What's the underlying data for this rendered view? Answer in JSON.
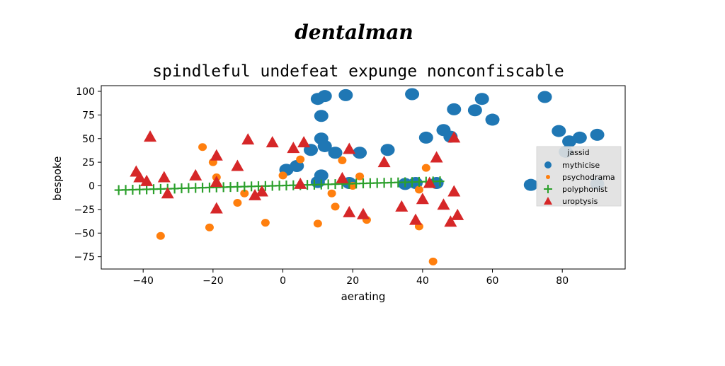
{
  "suptitle": "dentalman",
  "chart_data": {
    "type": "scatter",
    "title": "spindleful undefeat expunge nonconfiscable",
    "xlabel": "aerating",
    "ylabel": "bespoke",
    "xlim": [
      -52,
      98
    ],
    "ylim": [
      -88,
      106
    ],
    "xticks": [
      -40,
      -20,
      0,
      20,
      40,
      60,
      80
    ],
    "xtick_labels": [
      "−40",
      "−20",
      "0",
      "20",
      "40",
      "60",
      "80"
    ],
    "yticks": [
      -75,
      -50,
      -25,
      0,
      25,
      50,
      75,
      100
    ],
    "ytick_labels": [
      "−75",
      "−50",
      "−25",
      "0",
      "25",
      "50",
      "75",
      "100"
    ],
    "grid": false,
    "legend": {
      "title": "jassid",
      "placement": "center-right"
    },
    "series": [
      {
        "name": "mythicise",
        "marker": "circle-large",
        "color": "#1f77b4",
        "points": [
          [
            10,
            92
          ],
          [
            12,
            95
          ],
          [
            18,
            96
          ],
          [
            37,
            97
          ],
          [
            57,
            92
          ],
          [
            75,
            94
          ],
          [
            11,
            74
          ],
          [
            49,
            81
          ],
          [
            55,
            80
          ],
          [
            60,
            70
          ],
          [
            79,
            58
          ],
          [
            82,
            47
          ],
          [
            85,
            51
          ],
          [
            90,
            54
          ],
          [
            46,
            59
          ],
          [
            41,
            51
          ],
          [
            48,
            52
          ],
          [
            11,
            50
          ],
          [
            12,
            42
          ],
          [
            15,
            35
          ],
          [
            22,
            35
          ],
          [
            30,
            38
          ],
          [
            8,
            38
          ],
          [
            4,
            21
          ],
          [
            1,
            17
          ],
          [
            11,
            11
          ],
          [
            19,
            3
          ],
          [
            10,
            4
          ],
          [
            35,
            2
          ],
          [
            38,
            3
          ],
          [
            44,
            3
          ],
          [
            71,
            1
          ],
          [
            81,
            36
          ],
          [
            90,
            2
          ]
        ]
      },
      {
        "name": "psychodrama",
        "marker": "circle-small",
        "color": "#ff7f0e",
        "points": [
          [
            -23,
            41
          ],
          [
            -20,
            25
          ],
          [
            -19,
            9
          ],
          [
            -35,
            -53
          ],
          [
            -21,
            -44
          ],
          [
            -13,
            -18
          ],
          [
            -11,
            -8
          ],
          [
            -5,
            -39
          ],
          [
            0,
            11
          ],
          [
            5,
            28
          ],
          [
            10,
            -40
          ],
          [
            14,
            -8
          ],
          [
            15,
            -22
          ],
          [
            17,
            27
          ],
          [
            20,
            0
          ],
          [
            22,
            10
          ],
          [
            24,
            -36
          ],
          [
            39,
            -4
          ],
          [
            39,
            -43
          ],
          [
            41,
            19
          ],
          [
            43,
            -80
          ]
        ]
      },
      {
        "name": "polyphonist",
        "marker": "plus",
        "color": "#2ca02c",
        "points": [
          [
            -47,
            -4.5
          ],
          [
            -45,
            -4.3
          ],
          [
            -43,
            -4.1
          ],
          [
            -41,
            -3.9
          ],
          [
            -39,
            -3.7
          ],
          [
            -37,
            -3.5
          ],
          [
            -35,
            -3.3
          ],
          [
            -33,
            -3.1
          ],
          [
            -31,
            -2.9
          ],
          [
            -29,
            -2.6
          ],
          [
            -27,
            -2.4
          ],
          [
            -25,
            -2.2
          ],
          [
            -23,
            -2.0
          ],
          [
            -21,
            -1.8
          ],
          [
            -19,
            -1.6
          ],
          [
            -17,
            -1.4
          ],
          [
            -15,
            -1.2
          ],
          [
            -13,
            -1.0
          ],
          [
            -11,
            -0.8
          ],
          [
            -9,
            -0.6
          ],
          [
            -7,
            -0.4
          ],
          [
            -5,
            -0.2
          ],
          [
            -3,
            0.0
          ],
          [
            -1,
            0.2
          ],
          [
            1,
            0.4
          ],
          [
            3,
            0.6
          ],
          [
            5,
            0.8
          ],
          [
            7,
            1.0
          ],
          [
            9,
            1.2
          ],
          [
            11,
            1.4
          ],
          [
            13,
            1.6
          ],
          [
            15,
            1.8
          ],
          [
            17,
            2.0
          ],
          [
            19,
            2.2
          ],
          [
            21,
            2.4
          ],
          [
            23,
            2.6
          ],
          [
            25,
            2.8
          ],
          [
            27,
            3.0
          ],
          [
            29,
            3.2
          ],
          [
            31,
            3.4
          ],
          [
            33,
            3.6
          ],
          [
            35,
            3.8
          ],
          [
            37,
            4.0
          ],
          [
            39,
            4.2
          ],
          [
            41,
            4.4
          ],
          [
            43,
            4.6
          ],
          [
            45,
            4.8
          ]
        ]
      },
      {
        "name": "uroptysis",
        "marker": "triangle",
        "color": "#d62728",
        "points": [
          [
            -38,
            52
          ],
          [
            -42,
            15
          ],
          [
            -41,
            9
          ],
          [
            -39,
            5
          ],
          [
            -34,
            9
          ],
          [
            -33,
            -8
          ],
          [
            -25,
            11
          ],
          [
            -19,
            32
          ],
          [
            -19,
            4
          ],
          [
            -19,
            -24
          ],
          [
            -13,
            21
          ],
          [
            -10,
            49
          ],
          [
            -8,
            -10
          ],
          [
            -6,
            -6
          ],
          [
            -3,
            46
          ],
          [
            3,
            40
          ],
          [
            5,
            2
          ],
          [
            6,
            46
          ],
          [
            19,
            39
          ],
          [
            17,
            8
          ],
          [
            19,
            -28
          ],
          [
            23,
            -30
          ],
          [
            29,
            25
          ],
          [
            34,
            -22
          ],
          [
            38,
            -36
          ],
          [
            40,
            -14
          ],
          [
            42,
            3
          ],
          [
            44,
            30
          ],
          [
            46,
            -20
          ],
          [
            48,
            -38
          ],
          [
            49,
            51
          ],
          [
            49,
            -6
          ],
          [
            50,
            -31
          ]
        ]
      }
    ]
  }
}
